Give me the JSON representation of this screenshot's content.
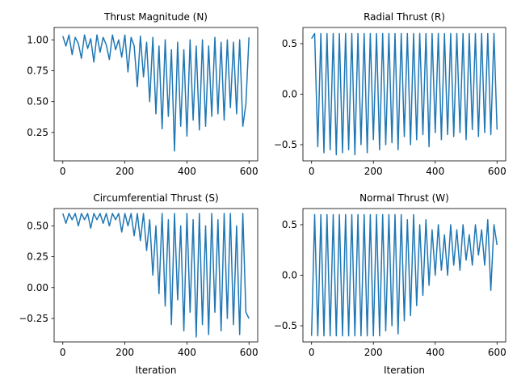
{
  "chart_data": [
    {
      "type": "line",
      "title": "Thrust Magnitude (N)",
      "xlabel": "",
      "ylabel": "",
      "xlim": [
        -28,
        628
      ],
      "ylim": [
        0.02,
        1.1
      ],
      "xticks": [
        0,
        200,
        400,
        600
      ],
      "xtick_labels": [
        "0",
        "200",
        "400",
        "600"
      ],
      "yticks": [
        0.25,
        0.5,
        0.75,
        1.0
      ],
      "ytick_labels": [
        "0.25",
        "0.50",
        "0.75",
        "1.00"
      ],
      "color": "#1f77b4",
      "series": [
        {
          "x": [
            0,
            10,
            20,
            30,
            40,
            50,
            60,
            70,
            80,
            90,
            100,
            110,
            120,
            130,
            140,
            150,
            160,
            170,
            180,
            190,
            200,
            210,
            220,
            230,
            240,
            250,
            260,
            270,
            280,
            290,
            300,
            310,
            320,
            330,
            340,
            350,
            360,
            370,
            380,
            390,
            400,
            410,
            420,
            430,
            440,
            450,
            460,
            470,
            480,
            490,
            500,
            510,
            520,
            530,
            540,
            550,
            560,
            570,
            580,
            590,
            600
          ],
          "values": [
            1.03,
            0.95,
            1.04,
            0.88,
            1.02,
            0.97,
            0.85,
            1.04,
            0.93,
            1.01,
            0.82,
            1.04,
            0.9,
            1.02,
            0.96,
            0.84,
            1.04,
            0.92,
            1.0,
            0.86,
            1.04,
            0.74,
            1.02,
            0.95,
            0.62,
            1.03,
            0.7,
            0.98,
            0.5,
            1.02,
            0.4,
            0.95,
            0.28,
            1.0,
            0.38,
            0.92,
            0.1,
            0.98,
            0.3,
            0.92,
            0.22,
            1.0,
            0.35,
            0.95,
            0.27,
            1.0,
            0.3,
            0.95,
            0.38,
            1.02,
            0.4,
            0.98,
            0.35,
            1.0,
            0.45,
            0.98,
            0.4,
            1.0,
            0.3,
            0.48,
            1.02
          ]
        }
      ]
    },
    {
      "type": "line",
      "title": "Radial Thrust (R)",
      "xlabel": "",
      "ylabel": "",
      "xlim": [
        -28,
        628
      ],
      "ylim": [
        -0.66,
        0.66
      ],
      "xticks": [
        0,
        200,
        400,
        600
      ],
      "xtick_labels": [
        "0",
        "200",
        "400",
        "600"
      ],
      "yticks": [
        -0.5,
        0.0,
        0.5
      ],
      "ytick_labels": [
        "−0.5",
        "0.0",
        "0.5"
      ],
      "color": "#1f77b4",
      "series": [
        {
          "x": [
            0,
            10,
            20,
            30,
            40,
            50,
            60,
            70,
            80,
            90,
            100,
            110,
            120,
            130,
            140,
            150,
            160,
            170,
            180,
            190,
            200,
            210,
            220,
            230,
            240,
            250,
            260,
            270,
            280,
            290,
            300,
            310,
            320,
            330,
            340,
            350,
            360,
            370,
            380,
            390,
            400,
            410,
            420,
            430,
            440,
            450,
            460,
            470,
            480,
            490,
            500,
            510,
            520,
            530,
            540,
            550,
            560,
            570,
            580,
            590,
            600
          ],
          "values": [
            0.55,
            0.6,
            -0.52,
            0.6,
            -0.58,
            0.6,
            -0.55,
            0.6,
            -0.6,
            0.6,
            -0.58,
            0.6,
            -0.55,
            0.6,
            -0.6,
            0.6,
            -0.5,
            0.6,
            -0.58,
            0.6,
            -0.45,
            0.6,
            -0.55,
            0.6,
            -0.5,
            0.6,
            -0.48,
            0.6,
            -0.55,
            0.6,
            -0.42,
            0.6,
            -0.5,
            0.6,
            -0.45,
            0.6,
            -0.4,
            0.6,
            -0.52,
            0.6,
            -0.38,
            0.6,
            -0.45,
            0.6,
            -0.4,
            0.6,
            -0.42,
            0.6,
            -0.38,
            0.6,
            -0.45,
            0.6,
            -0.35,
            0.6,
            -0.42,
            0.6,
            -0.38,
            0.6,
            -0.4,
            0.6,
            -0.35
          ]
        }
      ]
    },
    {
      "type": "line",
      "title": "Circumferential Thrust (S)",
      "xlabel": "Iteration",
      "ylabel": "",
      "xlim": [
        -28,
        628
      ],
      "ylim": [
        -0.44,
        0.64
      ],
      "xticks": [
        0,
        200,
        400,
        600
      ],
      "xtick_labels": [
        "0",
        "200",
        "400",
        "600"
      ],
      "yticks": [
        -0.25,
        0.0,
        0.25,
        0.5
      ],
      "ytick_labels": [
        "−0.25",
        "0.00",
        "0.25",
        "0.50"
      ],
      "color": "#1f77b4",
      "series": [
        {
          "x": [
            0,
            10,
            20,
            30,
            40,
            50,
            60,
            70,
            80,
            90,
            100,
            110,
            120,
            130,
            140,
            150,
            160,
            170,
            180,
            190,
            200,
            210,
            220,
            230,
            240,
            250,
            260,
            270,
            280,
            290,
            300,
            310,
            320,
            330,
            340,
            350,
            360,
            370,
            380,
            390,
            400,
            410,
            420,
            430,
            440,
            450,
            460,
            470,
            480,
            490,
            500,
            510,
            520,
            530,
            540,
            550,
            560,
            570,
            580,
            590,
            600
          ],
          "values": [
            0.6,
            0.52,
            0.6,
            0.55,
            0.6,
            0.5,
            0.6,
            0.55,
            0.6,
            0.48,
            0.6,
            0.55,
            0.6,
            0.52,
            0.6,
            0.5,
            0.6,
            0.55,
            0.6,
            0.45,
            0.6,
            0.5,
            0.6,
            0.42,
            0.6,
            0.38,
            0.6,
            0.3,
            0.55,
            0.1,
            0.5,
            -0.05,
            0.6,
            -0.15,
            0.55,
            -0.3,
            0.6,
            -0.1,
            0.5,
            -0.35,
            0.6,
            -0.2,
            0.55,
            -0.4,
            0.6,
            -0.3,
            0.5,
            -0.38,
            0.6,
            -0.2,
            0.55,
            -0.35,
            0.6,
            -0.25,
            0.6,
            -0.3,
            0.5,
            -0.38,
            0.6,
            -0.2,
            -0.25
          ]
        }
      ]
    },
    {
      "type": "line",
      "title": "Normal Thrust (W)",
      "xlabel": "Iteration",
      "ylabel": "",
      "xlim": [
        -28,
        628
      ],
      "ylim": [
        -0.66,
        0.66
      ],
      "xticks": [
        0,
        200,
        400,
        600
      ],
      "xtick_labels": [
        "0",
        "200",
        "400",
        "600"
      ],
      "yticks": [
        -0.5,
        0.0,
        0.5
      ],
      "ytick_labels": [
        "−0.5",
        "0.0",
        "0.5"
      ],
      "color": "#1f77b4",
      "series": [
        {
          "x": [
            0,
            10,
            20,
            30,
            40,
            50,
            60,
            70,
            80,
            90,
            100,
            110,
            120,
            130,
            140,
            150,
            160,
            170,
            180,
            190,
            200,
            210,
            220,
            230,
            240,
            250,
            260,
            270,
            280,
            290,
            300,
            310,
            320,
            330,
            340,
            350,
            360,
            370,
            380,
            390,
            400,
            410,
            420,
            430,
            440,
            450,
            460,
            470,
            480,
            490,
            500,
            510,
            520,
            530,
            540,
            550,
            560,
            570,
            580,
            590,
            600
          ],
          "values": [
            -0.6,
            0.6,
            -0.6,
            0.6,
            -0.6,
            0.6,
            -0.6,
            0.6,
            -0.6,
            0.6,
            -0.6,
            0.6,
            -0.6,
            0.6,
            -0.6,
            0.6,
            -0.6,
            0.6,
            -0.6,
            0.6,
            -0.6,
            0.6,
            -0.6,
            0.6,
            -0.55,
            0.6,
            -0.5,
            0.6,
            -0.58,
            0.6,
            -0.45,
            0.55,
            -0.4,
            0.6,
            -0.3,
            0.5,
            -0.2,
            0.55,
            -0.1,
            0.45,
            0.0,
            0.5,
            0.05,
            0.4,
            0.0,
            0.5,
            0.1,
            0.45,
            0.05,
            0.5,
            0.15,
            0.4,
            0.1,
            0.5,
            0.2,
            0.45,
            0.1,
            0.55,
            -0.15,
            0.5,
            0.3
          ]
        }
      ]
    }
  ]
}
